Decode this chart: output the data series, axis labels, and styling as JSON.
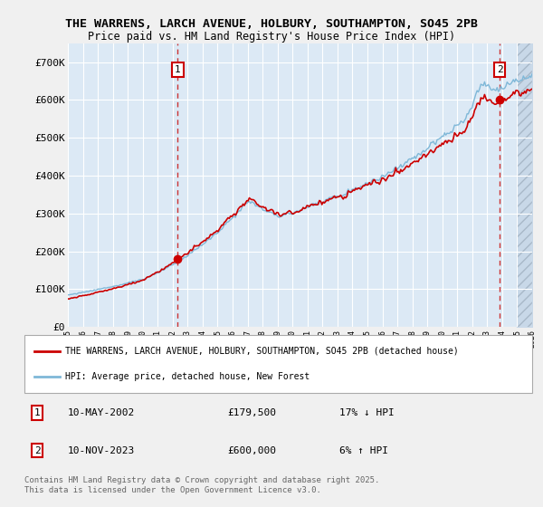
{
  "title_line1": "THE WARRENS, LARCH AVENUE, HOLBURY, SOUTHAMPTON, SO45 2PB",
  "title_line2": "Price paid vs. HM Land Registry's House Price Index (HPI)",
  "ylim": [
    0,
    750000
  ],
  "yticks": [
    0,
    100000,
    200000,
    300000,
    400000,
    500000,
    600000,
    700000
  ],
  "ytick_labels": [
    "£0",
    "£100K",
    "£200K",
    "£300K",
    "£400K",
    "£500K",
    "£600K",
    "£700K"
  ],
  "hpi_color": "#7fb8d8",
  "property_color": "#cc0000",
  "plot_bg_color": "#dce9f5",
  "fig_bg_color": "#f0f0f0",
  "grid_color": "#ffffff",
  "sale1_date": "10-MAY-2002",
  "sale1_price": 179500,
  "sale1_note": "17% ↓ HPI",
  "sale2_date": "10-NOV-2023",
  "sale2_price": 600000,
  "sale2_note": "6% ↑ HPI",
  "legend_property": "THE WARRENS, LARCH AVENUE, HOLBURY, SOUTHAMPTON, SO45 2PB (detached house)",
  "legend_hpi": "HPI: Average price, detached house, New Forest",
  "footnote": "Contains HM Land Registry data © Crown copyright and database right 2025.\nThis data is licensed under the Open Government Licence v3.0.",
  "xstart": 1995,
  "xend": 2026
}
